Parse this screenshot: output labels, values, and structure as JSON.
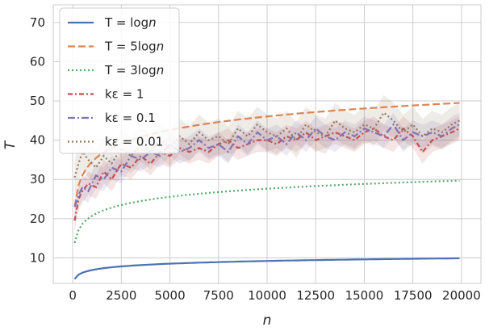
{
  "chart_data": {
    "type": "line",
    "xlabel": "n",
    "ylabel": "T",
    "xlim": [
      -1000,
      21000
    ],
    "ylim": [
      3.5,
      74.5
    ],
    "xticks": [
      0,
      2500,
      5000,
      7500,
      10000,
      12500,
      15000,
      17500,
      20000
    ],
    "yticks": [
      10,
      20,
      30,
      40,
      50,
      60,
      70
    ],
    "grid": true,
    "legend_position": "top-left",
    "series": [
      {
        "name": "T = log n",
        "legend": [
          "T = log",
          "n"
        ],
        "color": "#4c72b0",
        "dash": "",
        "formula": "log",
        "coef": 1
      },
      {
        "name": "T = 5log n",
        "legend": [
          "T = 5log",
          "n"
        ],
        "color": "#dd8452",
        "dash": "9,4",
        "formula": "log",
        "coef": 5
      },
      {
        "name": "T = 3log n",
        "legend": [
          "T = 3log",
          "n"
        ],
        "color": "#55a868",
        "dash": "2,3",
        "formula": "log",
        "coef": 3
      },
      {
        "name": "kε = 1",
        "legend": [
          "kε = 1",
          ""
        ],
        "color": "#c44e52",
        "dash": "6,3,2,3",
        "x": [
          100,
          300,
          500,
          800,
          1200,
          1600,
          2000,
          2500,
          3000,
          3500,
          4000,
          4500,
          5000,
          5500,
          6000,
          6500,
          7000,
          7500,
          8000,
          8500,
          9000,
          9500,
          10000,
          10500,
          11000,
          11500,
          12000,
          12500,
          13000,
          13500,
          14000,
          14500,
          15000,
          15500,
          16000,
          16500,
          17000,
          17500,
          18000,
          18500,
          19000,
          19500,
          19900
        ],
        "y": [
          19.5,
          25,
          27,
          29,
          28,
          32,
          30,
          34,
          33,
          36,
          34,
          37,
          36,
          38,
          37,
          38,
          37,
          39,
          40,
          38,
          39,
          40,
          40,
          39,
          41,
          40,
          42,
          40,
          41,
          42,
          41,
          40,
          42,
          43,
          41,
          40,
          43,
          41,
          37,
          40,
          41,
          42,
          43
        ]
      },
      {
        "name": "kε = 0.1",
        "legend": [
          "kε = 0.1",
          ""
        ],
        "color": "#8172b3",
        "dash": "9,3,2,3",
        "x": [
          100,
          300,
          500,
          800,
          1200,
          1600,
          2000,
          2500,
          3000,
          3500,
          4000,
          4500,
          5000,
          5500,
          6000,
          6500,
          7000,
          7500,
          8000,
          8500,
          9000,
          9500,
          10000,
          10500,
          11000,
          11500,
          12000,
          12500,
          13000,
          13500,
          14000,
          14500,
          15000,
          15500,
          16000,
          16500,
          17000,
          17500,
          18000,
          18500,
          19000,
          19500,
          19900
        ],
        "y": [
          23,
          26,
          28,
          27,
          31,
          30,
          33,
          32,
          36,
          35,
          37,
          36,
          39,
          37,
          38,
          40,
          38,
          39,
          37,
          41,
          39,
          42,
          40,
          41,
          39,
          42,
          40,
          43,
          41,
          40,
          42,
          41,
          43,
          42,
          41,
          44,
          40,
          42,
          41,
          42,
          41,
          43,
          44
        ]
      },
      {
        "name": "kε = 0.01",
        "legend": [
          "kε = 0.01",
          ""
        ],
        "color": "#937860",
        "dash": "2,3",
        "x": [
          100,
          300,
          500,
          800,
          1200,
          1600,
          2000,
          2500,
          3000,
          3500,
          4000,
          4500,
          5000,
          5500,
          6000,
          6500,
          7000,
          7500,
          8000,
          8500,
          9000,
          9500,
          10000,
          10500,
          11000,
          11500,
          12000,
          12500,
          13000,
          13500,
          14000,
          14500,
          15000,
          15500,
          16000,
          16500,
          17000,
          17500,
          18000,
          18500,
          19000,
          19500,
          19900
        ],
        "y": [
          30.5,
          34,
          37,
          35,
          33,
          36,
          34,
          38,
          36,
          39,
          37,
          40,
          38,
          41,
          39,
          42,
          40,
          41,
          39,
          43,
          41,
          44,
          42,
          41,
          43,
          40,
          44,
          42,
          41,
          45,
          43,
          42,
          44,
          43,
          47,
          45,
          42,
          44,
          41,
          43,
          42,
          44,
          45
        ]
      }
    ]
  }
}
